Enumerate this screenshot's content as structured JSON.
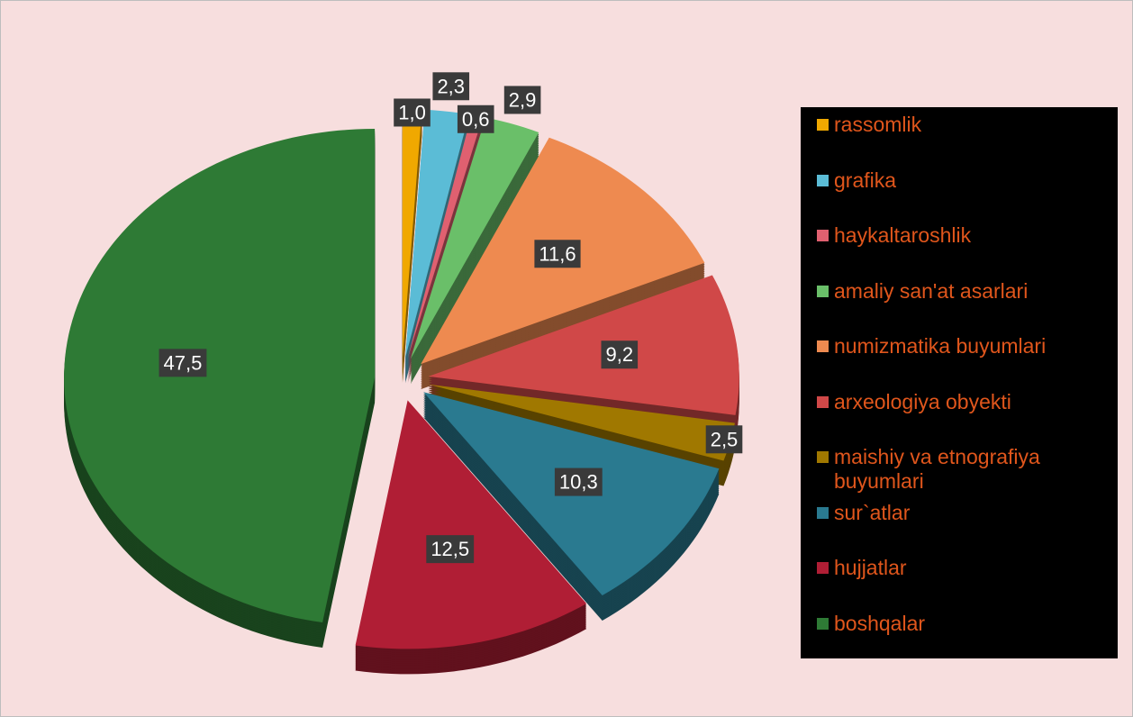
{
  "chart_data": {
    "type": "pie",
    "categories": [
      "rassomlik",
      "grafika",
      "haykaltaroshlik",
      "amaliy san'at asarlari",
      "numizmatika buyumlari",
      "arxeologiya obyekti",
      "maishiy va etnografiya buyumlari",
      "sur`atlar",
      "hujjatlar",
      "boshqalar"
    ],
    "values": [
      1.0,
      2.3,
      0.6,
      2.9,
      11.6,
      9.2,
      2.5,
      10.3,
      12.5,
      47.5
    ],
    "value_labels": [
      "1,0",
      "2,3",
      "0,6",
      "2,9",
      "11,6",
      "9,2",
      "2,5",
      "10,3",
      "12,5",
      "47,5"
    ],
    "colors": [
      "#f0a800",
      "#5bbcd6",
      "#e06070",
      "#6abf69",
      "#ee8a50",
      "#d04848",
      "#a07800",
      "#2a7a90",
      "#b01e35",
      "#2e7a35"
    ],
    "legend": "right"
  }
}
